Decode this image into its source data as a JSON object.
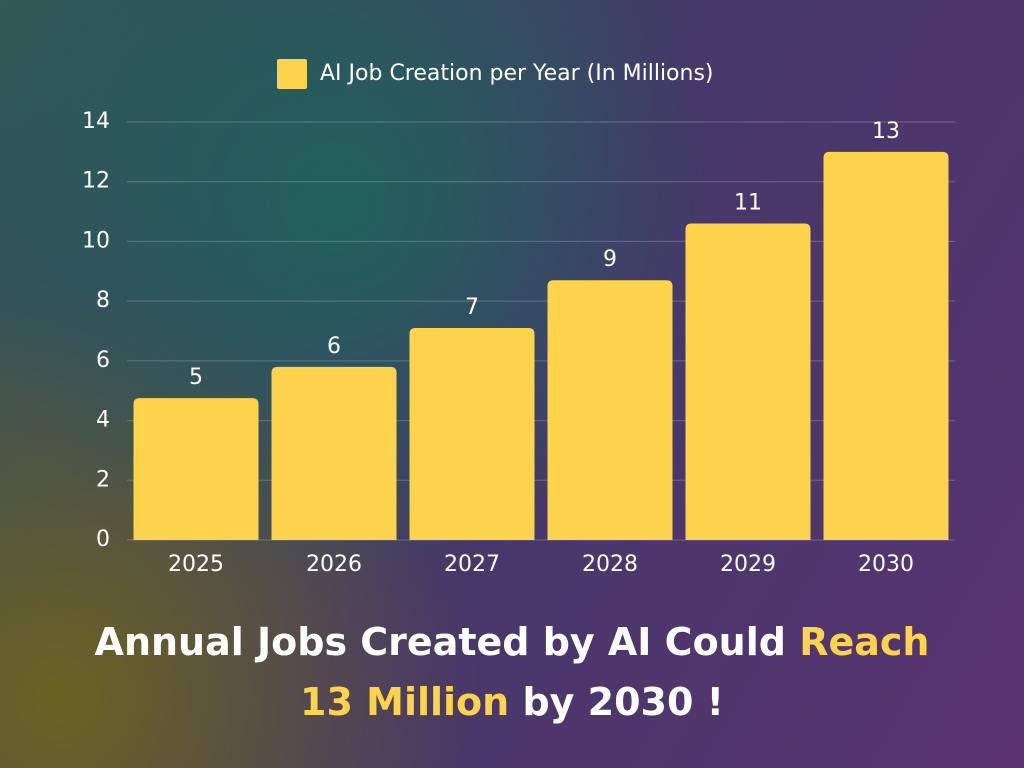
{
  "chart_data": {
    "type": "bar",
    "legend_label": "AI Job Creation per Year (In Millions)",
    "categories": [
      "2025",
      "2026",
      "2027",
      "2028",
      "2029",
      "2030"
    ],
    "values": [
      4.75,
      5.8,
      7.1,
      8.7,
      10.6,
      13
    ],
    "value_labels": [
      "5",
      "6",
      "7",
      "9",
      "11",
      "13"
    ],
    "color": "#fcd34d",
    "ylim": [
      0,
      14
    ],
    "yticks": [
      0,
      2,
      4,
      6,
      8,
      10,
      12,
      14
    ],
    "grid": true,
    "title": [
      {
        "text": "Annual Jobs Created by AI Could",
        "color": "#ffffff"
      },
      {
        "text": "Reach",
        "color": "#fcd34d"
      },
      {
        "text": "13 Million",
        "color": "#fcd34d"
      },
      {
        "text": "by 2030 !",
        "color": "#ffffff"
      }
    ]
  }
}
